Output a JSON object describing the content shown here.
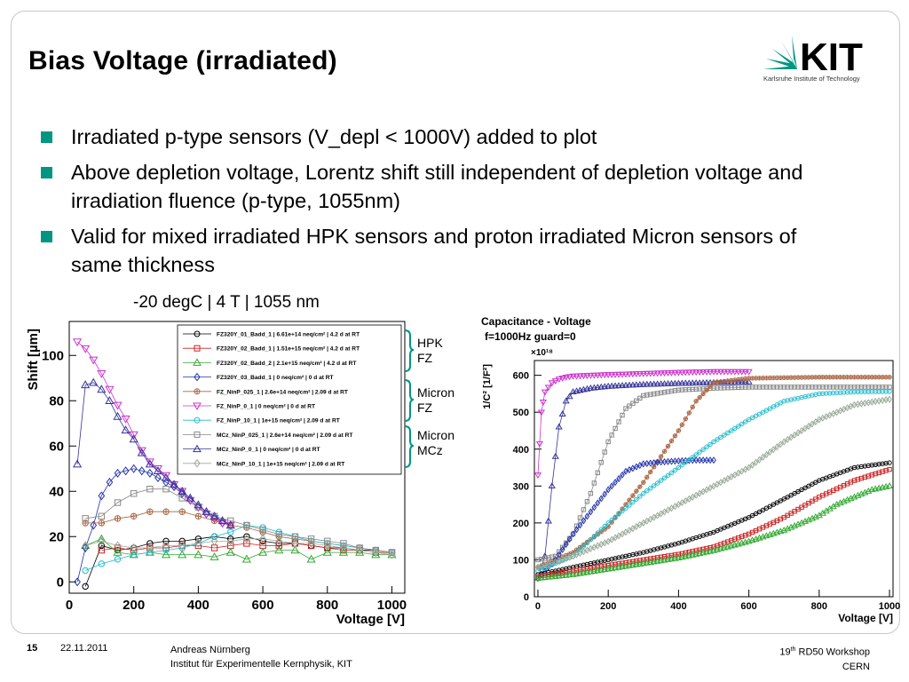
{
  "slide": {
    "title": "Bias Voltage (irradiated)",
    "bullets": [
      "Irradiated p-type sensors (V_depl < 1000V) added to plot",
      "Above depletion voltage, Lorentz shift still independent of depletion voltage and irradiation fluence (p-type, 1055nm)",
      "Valid for mixed irradiated HPK sensors and proton irradiated Micron sensors of same thickness"
    ],
    "logo_text": "KIT",
    "logo_subtitle": "Karlsruhe Institute of Technology",
    "accent_color": "#009682"
  },
  "groups": [
    {
      "line1": "HPK",
      "line2": "FZ"
    },
    {
      "line1": "Micron",
      "line2": "FZ"
    },
    {
      "line1": "Micron",
      "line2": "MCz"
    }
  ],
  "footer": {
    "page": "15",
    "date": "22.11.2011",
    "author": "Andreas Nürnberg",
    "institute": "Institut für Experimentelle Kernphysik, KIT",
    "workshop_num": "19",
    "workshop_sup": "th",
    "workshop_rest": " RD50 Workshop",
    "location": "CERN"
  },
  "chart_data": [
    {
      "type": "line",
      "title": "-20 degC | 4 T | 1055 nm",
      "xlabel": "Voltage [V]",
      "ylabel": "Shift [µm]",
      "xlim": [
        0,
        1040
      ],
      "ylim": [
        -5,
        115
      ],
      "xticks": [
        0,
        200,
        400,
        600,
        800,
        1000
      ],
      "yticks": [
        0,
        20,
        40,
        60,
        80,
        100
      ],
      "legend_position": "top-right",
      "series": [
        {
          "name": "FZ320Y_01_Badd_1 | 6.61e+14 neq/cm² | 4.2 d at RT",
          "color": "#000000",
          "marker": "circle",
          "x": [
            50,
            100,
            150,
            200,
            250,
            300,
            350,
            400,
            450,
            500,
            550,
            600,
            650,
            700,
            750,
            800,
            850,
            900,
            950,
            1000
          ],
          "y": [
            -2,
            16,
            14,
            15,
            17,
            18,
            18,
            19,
            20,
            19,
            20,
            18,
            17,
            17,
            16,
            15,
            15,
            14,
            14,
            13
          ]
        },
        {
          "name": "FZ320Y_02_Badd_1 | 1.51e+15 neq/cm² | 4.2 d at RT",
          "color": "#cc2222",
          "marker": "square",
          "x": [
            100,
            150,
            200,
            250,
            300,
            350,
            400,
            450,
            500,
            550,
            600,
            650,
            700,
            750,
            800,
            850,
            900,
            950,
            1000
          ],
          "y": [
            14,
            15,
            14,
            15,
            15,
            16,
            16,
            15,
            16,
            17,
            16,
            16,
            17,
            16,
            15,
            14,
            14,
            13,
            13
          ]
        },
        {
          "name": "FZ320Y_02_Badd_2 | 2.1e+15 neq/cm² | 4.2 d at RT",
          "color": "#33aa33",
          "marker": "triangle",
          "x": [
            50,
            100,
            150,
            200,
            250,
            300,
            350,
            400,
            450,
            500,
            550,
            600,
            650,
            700,
            750,
            800,
            850,
            900,
            950,
            1000
          ],
          "y": [
            16,
            19,
            13,
            12,
            13,
            12,
            12,
            12,
            11,
            13,
            10,
            13,
            14,
            14,
            10,
            13,
            13,
            13,
            12,
            12
          ]
        },
        {
          "name": "FZ320Y_03_Badd_1 | 0 neq/cm² | 0 d at RT",
          "color": "#2233aa",
          "marker": "diamond",
          "x": [
            25,
            50,
            75,
            100,
            125,
            150,
            175,
            200,
            225,
            250,
            275,
            300,
            325,
            350,
            375,
            400,
            425,
            450,
            475,
            500
          ],
          "y": [
            0,
            15,
            25,
            38,
            44,
            48,
            49,
            50,
            49,
            48,
            46,
            44,
            42,
            39,
            36,
            33,
            30,
            28,
            26,
            25
          ]
        },
        {
          "name": "FZ_NinP_025_1 | 2.6e+14 neq/cm² | 2.09 d at RT",
          "color": "#aa6644",
          "marker": "circle-plus",
          "x": [
            50,
            100,
            150,
            200,
            250,
            300,
            350,
            400,
            450,
            500,
            550,
            600,
            650,
            700,
            750,
            800,
            850,
            900,
            950,
            1000
          ],
          "y": [
            26,
            26,
            28,
            29,
            31,
            31,
            31,
            29,
            27,
            25,
            24,
            22,
            20,
            19,
            18,
            17,
            16,
            15,
            14,
            13
          ]
        },
        {
          "name": "FZ_NinP_0_1 | 0 neq/cm² | 0 d at RT",
          "color": "#cc33cc",
          "marker": "triangle-down",
          "x": [
            25,
            50,
            75,
            100,
            125,
            150,
            175,
            200,
            225,
            250,
            275,
            300,
            325,
            350,
            375,
            400,
            425,
            450,
            475,
            500
          ],
          "y": [
            106,
            103,
            98,
            92,
            85,
            78,
            72,
            65,
            58,
            53,
            50,
            47,
            43,
            40,
            36,
            33,
            30,
            28,
            26,
            25
          ]
        },
        {
          "name": "FZ_NinP_10_1 | 1e+15 neq/cm² | 2.09 d at RT",
          "color": "#22bbcc",
          "marker": "circle",
          "x": [
            50,
            100,
            150,
            200,
            250,
            300,
            350,
            400,
            450,
            500,
            550,
            600,
            650,
            700,
            750,
            800,
            850,
            900,
            950,
            1000
          ],
          "y": [
            5,
            8,
            10,
            12,
            13,
            14,
            15,
            17,
            20,
            22,
            25,
            24,
            22,
            20,
            18,
            17,
            16,
            15,
            14,
            13
          ]
        },
        {
          "name": "MCz_NinP_025_1 | 2.6e+14 neq/cm² | 2.09 d at RT",
          "color": "#888888",
          "marker": "square",
          "x": [
            50,
            100,
            150,
            200,
            250,
            300,
            350,
            400,
            450,
            500,
            550,
            600,
            650,
            700,
            750,
            800,
            850,
            900,
            950,
            1000
          ],
          "y": [
            28,
            29,
            35,
            39,
            41,
            41,
            37,
            33,
            29,
            27,
            25,
            23,
            21,
            20,
            19,
            18,
            17,
            15,
            14,
            13
          ]
        },
        {
          "name": "MCz_NinP_0_1 | 0 neq/cm² | 0 d at RT",
          "color": "#333399",
          "marker": "triangle",
          "x": [
            25,
            50,
            75,
            100,
            125,
            150,
            175,
            200,
            225,
            250,
            275,
            300,
            325,
            350,
            375,
            400,
            425,
            450,
            475,
            500
          ],
          "y": [
            52,
            87,
            88,
            85,
            80,
            73,
            67,
            63,
            57,
            52,
            49,
            46,
            43,
            40,
            37,
            34,
            31,
            29,
            27,
            25
          ]
        },
        {
          "name": "MCz_NinP_10_1 | 1e+15 neq/cm² | 2.09 d at RT",
          "color": "#99aa99",
          "marker": "diamond",
          "x": [
            50,
            100,
            150,
            200,
            250,
            300,
            350,
            400,
            450,
            500,
            550,
            600,
            650,
            700,
            750,
            800,
            850,
            900,
            950,
            1000
          ],
          "y": [
            16,
            18,
            16,
            15,
            15,
            16,
            16,
            17,
            18,
            18,
            19,
            19,
            18,
            17,
            17,
            16,
            15,
            14,
            13,
            12
          ]
        }
      ]
    },
    {
      "type": "scatter",
      "title": "Capacitance - Voltage",
      "subtitle": "f=1000Hz guard=0",
      "xlabel": "Voltage [V]",
      "ylabel": "1/C² [1/F²]",
      "exponent_label": "×10¹⁸",
      "xlim": [
        -10,
        1010
      ],
      "ylim": [
        0,
        640
      ],
      "xticks": [
        0,
        200,
        400,
        600,
        800,
        1000
      ],
      "yticks": [
        0,
        100,
        200,
        300,
        400,
        500,
        600
      ],
      "series": [
        {
          "color": "#cc33cc",
          "marker": "triangle-down",
          "x": [
            0,
            10,
            20,
            40,
            60,
            80,
            100,
            150,
            200,
            300,
            400,
            500,
            600
          ],
          "y": [
            330,
            500,
            555,
            580,
            590,
            595,
            598,
            600,
            602,
            605,
            608,
            610,
            610
          ]
        },
        {
          "color": "#333399",
          "marker": "triangle",
          "x": [
            0,
            20,
            40,
            60,
            80,
            100,
            150,
            200,
            300,
            400,
            500,
            600
          ],
          "y": [
            50,
            110,
            300,
            460,
            530,
            555,
            565,
            570,
            575,
            578,
            580,
            582
          ]
        },
        {
          "color": "#888888",
          "marker": "square",
          "x": [
            0,
            50,
            100,
            150,
            200,
            250,
            300,
            400,
            500,
            600,
            800,
            1000
          ],
          "y": [
            100,
            110,
            170,
            280,
            420,
            510,
            545,
            560,
            565,
            568,
            568,
            568
          ]
        },
        {
          "color": "#aa6644",
          "marker": "circle-plus",
          "x": [
            0,
            100,
            200,
            300,
            400,
            450,
            500,
            600,
            800,
            1000
          ],
          "y": [
            80,
            120,
            190,
            310,
            450,
            530,
            580,
            592,
            595,
            595
          ]
        },
        {
          "color": "#2233aa",
          "marker": "diamond",
          "x": [
            0,
            50,
            100,
            150,
            200,
            250,
            300,
            350,
            400,
            450,
            500
          ],
          "y": [
            50,
            100,
            170,
            230,
            290,
            340,
            360,
            365,
            368,
            370,
            370
          ]
        },
        {
          "color": "#22bbcc",
          "marker": "circle",
          "x": [
            0,
            100,
            200,
            300,
            400,
            500,
            600,
            700,
            800,
            900,
            1000
          ],
          "y": [
            70,
            110,
            200,
            280,
            350,
            420,
            480,
            530,
            550,
            555,
            556
          ]
        },
        {
          "color": "#99aa99",
          "marker": "diamond",
          "x": [
            0,
            100,
            200,
            300,
            400,
            500,
            600,
            700,
            800,
            900,
            1000
          ],
          "y": [
            80,
            110,
            150,
            200,
            250,
            300,
            350,
            420,
            480,
            520,
            535
          ]
        },
        {
          "color": "#000000",
          "marker": "circle",
          "x": [
            0,
            100,
            200,
            300,
            400,
            500,
            600,
            700,
            800,
            900,
            1000
          ],
          "y": [
            60,
            80,
            100,
            120,
            145,
            175,
            215,
            265,
            315,
            350,
            363
          ]
        },
        {
          "color": "#cc2222",
          "marker": "square",
          "x": [
            0,
            100,
            200,
            300,
            400,
            500,
            600,
            700,
            800,
            900,
            1000
          ],
          "y": [
            55,
            70,
            85,
            100,
            115,
            135,
            170,
            215,
            270,
            315,
            345
          ]
        },
        {
          "color": "#33aa33",
          "marker": "triangle",
          "x": [
            0,
            100,
            200,
            300,
            400,
            500,
            600,
            700,
            800,
            850,
            900,
            950,
            1000
          ],
          "y": [
            50,
            60,
            75,
            90,
            105,
            125,
            150,
            180,
            220,
            250,
            270,
            290,
            300
          ]
        }
      ]
    }
  ]
}
